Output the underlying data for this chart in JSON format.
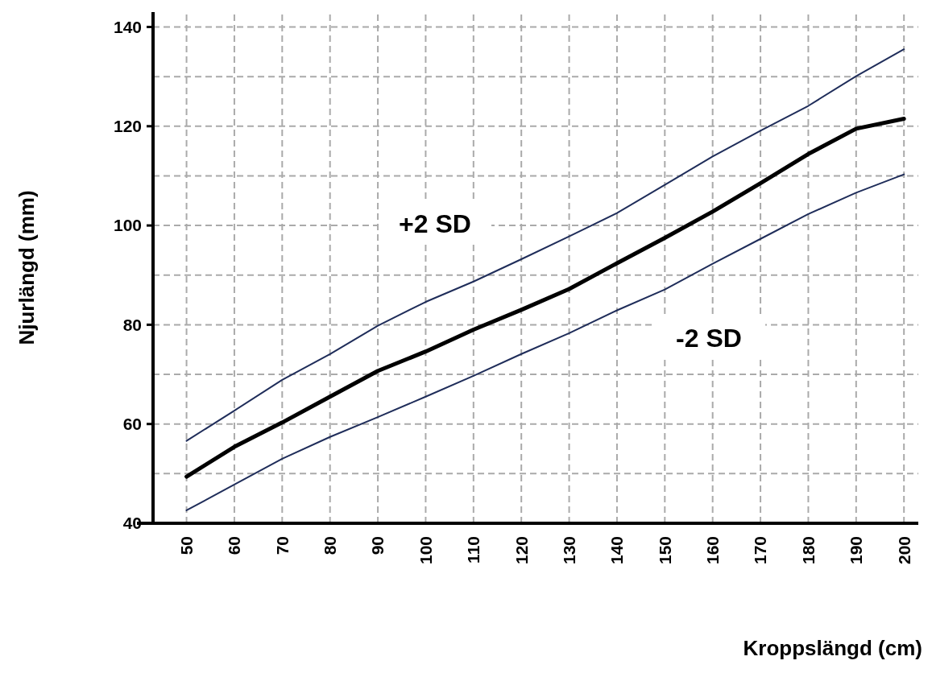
{
  "chart_data": {
    "type": "line",
    "xlabel": "Kroppslängd (cm)",
    "ylabel": "Njurlängd (mm)",
    "x": [
      50,
      60,
      70,
      80,
      90,
      100,
      110,
      120,
      130,
      140,
      150,
      160,
      170,
      180,
      190,
      200
    ],
    "series": [
      {
        "color": "#1f2d5a",
        "values": [
          56.6,
          62.7,
          68.9,
          74.1,
          79.8,
          84.6,
          88.7,
          93.2,
          97.8,
          102.5,
          108.2,
          113.9,
          119.1,
          124.1,
          130.1,
          135.5
        ]
      },
      {
        "color": "#000000",
        "values": [
          49.4,
          55.4,
          60.3,
          65.5,
          70.7,
          74.6,
          79,
          83,
          87.2,
          92.4,
          97.5,
          102.8,
          108.5,
          114.4,
          119.5,
          121.5
        ]
      },
      {
        "color": "#1f2d5a",
        "values": [
          42.6,
          47.8,
          53,
          57.4,
          61.4,
          65.5,
          69.7,
          74.1,
          78.3,
          82.9,
          87.1,
          92.3,
          97.3,
          102.3,
          106.6,
          110.3
        ]
      }
    ],
    "xlim": [
      43,
      203
    ],
    "ylim": [
      40,
      143
    ],
    "xticks": [
      50,
      60,
      70,
      80,
      90,
      100,
      110,
      120,
      130,
      140,
      150,
      160,
      170,
      180,
      190,
      200
    ],
    "yticks": [
      40,
      {
        "value": 50,
        "label": null
      },
      60,
      {
        "value": 70,
        "label": null
      },
      80,
      {
        "value": 90,
        "label": null
      },
      100,
      {
        "value": 110,
        "label": null
      },
      120,
      {
        "value": 130,
        "label": null
      },
      140
    ],
    "grid": true,
    "marker": "none",
    "line_style": "solid",
    "annotations": [
      "+2 SD",
      "-2 SD"
    ]
  }
}
